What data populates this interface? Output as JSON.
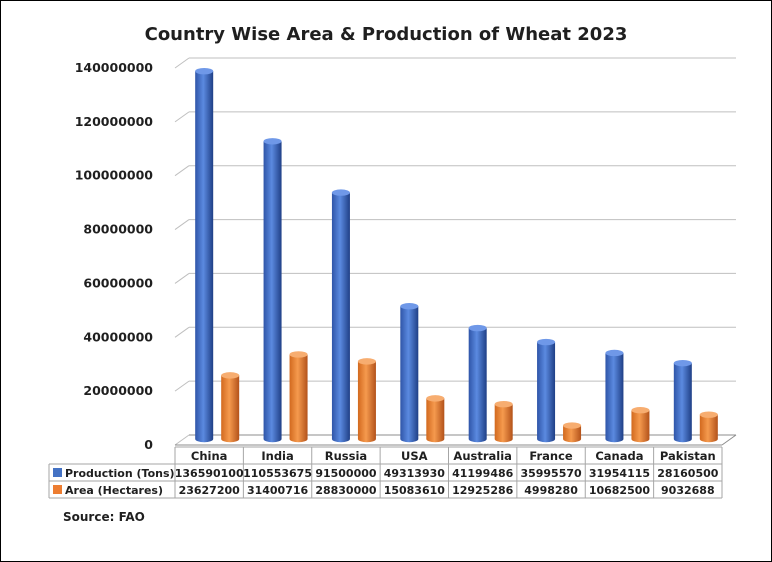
{
  "chart_data": {
    "type": "bar",
    "title": "Country Wise Area & Production of Wheat 2023",
    "categories": [
      "China",
      "India",
      "Russia",
      "USA",
      "Australia",
      "France",
      "Canada",
      "Pakistan"
    ],
    "series": [
      {
        "name": "Production (Tons)",
        "color": "#4472c4",
        "values": [
          136590100,
          110553675,
          91500000,
          49313930,
          41199486,
          35995570,
          31954115,
          28160500
        ]
      },
      {
        "name": "Area (Hectares)",
        "color": "#ed7d31",
        "values": [
          23627200,
          31400716,
          28830000,
          15083610,
          12925286,
          4998280,
          10682500,
          9032688
        ]
      }
    ],
    "ylim": [
      0,
      140000000
    ],
    "yticks": [
      0,
      20000000,
      40000000,
      60000000,
      80000000,
      100000000,
      120000000,
      140000000
    ],
    "grid": true,
    "legend": "data table below chart",
    "source": "Source: FAO"
  }
}
